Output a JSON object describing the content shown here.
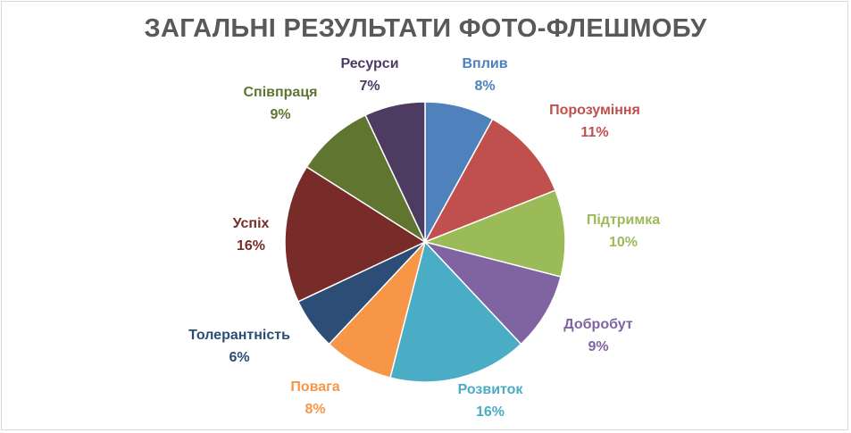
{
  "chart_data": {
    "type": "pie",
    "title": "ЗАГАЛЬНІ РЕЗУЛЬТАТИ ФОТО-ФЛЕШМОБУ",
    "categories": [
      "Вплив",
      "Порозуміння",
      "Підтримка",
      "Добробут",
      "Розвиток",
      "Повага",
      "Толерантність",
      "Успіх",
      "Співпраця",
      "Ресурси"
    ],
    "values": [
      8,
      11,
      10,
      9,
      16,
      8,
      6,
      16,
      9,
      7
    ],
    "value_labels": [
      "8%",
      "11%",
      "10%",
      "9%",
      "16%",
      "8%",
      "6%",
      "16%",
      "9%",
      "7%"
    ],
    "colors": [
      "#4f81bd",
      "#c0504d",
      "#9bbb59",
      "#8064a2",
      "#4bacc6",
      "#f79646",
      "#2c4d75",
      "#772c2a",
      "#5f7530",
      "#4d3b62"
    ],
    "label_colors": [
      "#4f81bd",
      "#c0504d",
      "#9bbb59",
      "#8064a2",
      "#4bacc6",
      "#f79646",
      "#2c4d75",
      "#772c2a",
      "#5f7530",
      "#4d3b62"
    ],
    "start_angle_deg": 0,
    "direction": "clockwise",
    "legend": "none"
  }
}
